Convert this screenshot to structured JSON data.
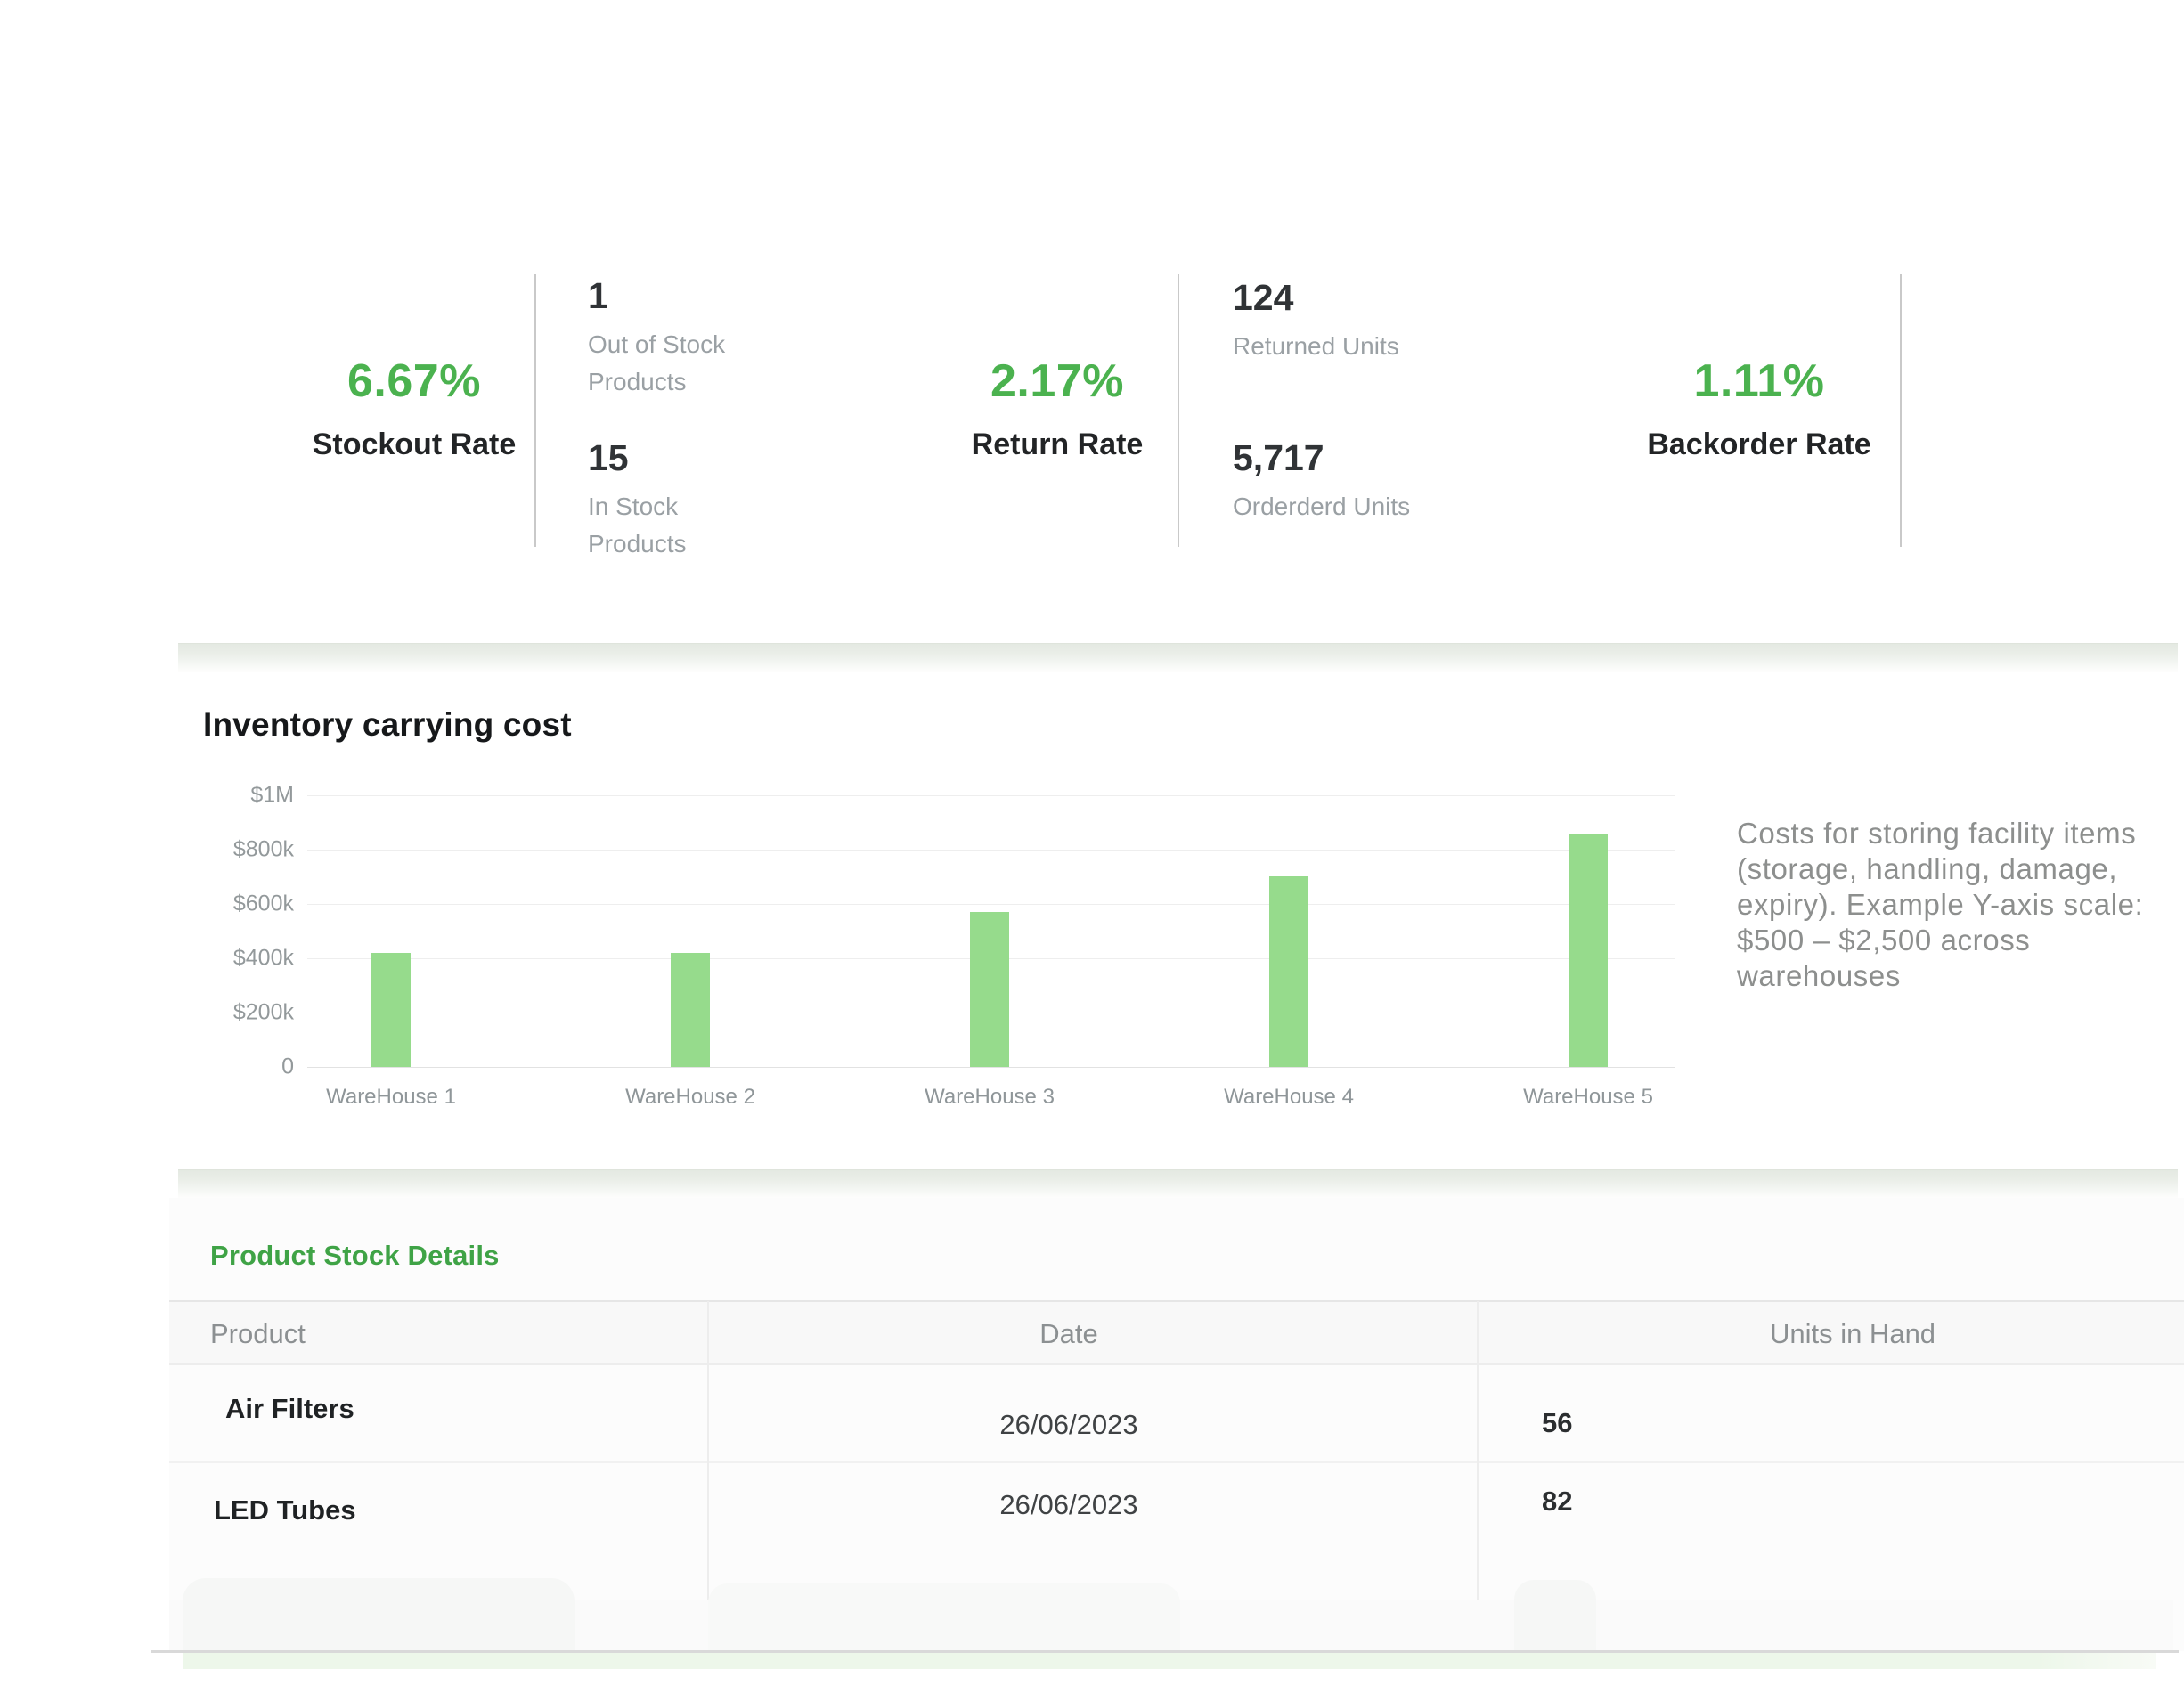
{
  "kpis": {
    "stockout": {
      "value": "6.67%",
      "label": "Stockout Rate"
    },
    "return": {
      "value": "2.17%",
      "label": "Return Rate"
    },
    "backorder": {
      "value": "1.11%",
      "label": "Backorder Rate"
    },
    "stock_counts": [
      {
        "value": "1",
        "label": "Out of Stock Products"
      },
      {
        "value": "15",
        "label": "In Stock Products"
      }
    ],
    "unit_counts": [
      {
        "value": "124",
        "label": "Returned Units"
      },
      {
        "value": "5,717",
        "label": "Orderderd Units"
      }
    ]
  },
  "chart_card": {
    "title": "Inventory carrying cost",
    "description": "Costs for storing facility items (storage, handling, damage, expiry). Example Y-axis scale: $500 – $2,500 across warehouses"
  },
  "chart_data": {
    "type": "bar",
    "title": "Inventory carrying cost",
    "categories": [
      "WareHouse 1",
      "WareHouse 2",
      "WareHouse 3",
      "WareHouse 4",
      "WareHouse 5"
    ],
    "values": [
      420000,
      420000,
      570000,
      700000,
      860000
    ],
    "y_ticks": [
      "$1M",
      "$800k",
      "$600k",
      "$400k",
      "$200k",
      "0"
    ],
    "ylim": [
      0,
      1000000
    ],
    "xlabel": "",
    "ylabel": "",
    "grid": true,
    "legend": false,
    "bar_color": "#96db8c"
  },
  "table_card": {
    "title": "Product Stock Details",
    "columns": [
      "Product",
      "Date",
      "Units in Hand"
    ],
    "rows": [
      {
        "product": "Air Filters",
        "date": "26/06/2023",
        "units": "56"
      },
      {
        "product": "LED Tubes",
        "date": "26/06/2023",
        "units": "82"
      }
    ]
  },
  "colors": {
    "kpi_green": "#4bb24f",
    "bar_green": "#96db8c",
    "table_title_green": "#3fa346",
    "strip_green": "#e4e9e2",
    "bottom_strip_green": "#edf7ea"
  }
}
